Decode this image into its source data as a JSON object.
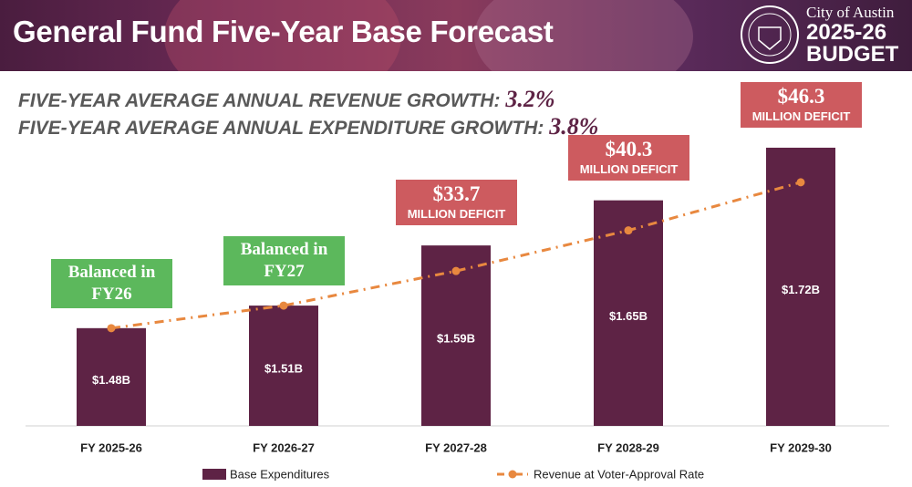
{
  "header": {
    "title": "General Fund Five-Year Base Forecast",
    "city": "City of Austin",
    "year": "2025-26",
    "budget": "BUDGET"
  },
  "headlines": [
    {
      "text": "FIVE-YEAR AVERAGE ANNUAL REVENUE GROWTH:",
      "value": "3.2%"
    },
    {
      "text": "FIVE-YEAR AVERAGE ANNUAL EXPENDITURE GROWTH:",
      "value": "3.8%"
    }
  ],
  "chart_data": {
    "type": "bar",
    "categories": [
      "FY 2025-26",
      "FY 2026-27",
      "FY 2027-28",
      "FY 2028-29",
      "FY 2029-30"
    ],
    "series": [
      {
        "name": "Base Expenditures",
        "color": "#5e2345",
        "type": "bar",
        "values": [
          1.48,
          1.51,
          1.59,
          1.65,
          1.72
        ],
        "value_labels": [
          "$1.48B",
          "$1.51B",
          "$1.59B",
          "$1.65B",
          "$1.72B"
        ]
      },
      {
        "name": "Revenue at Voter-Approval Rate",
        "color": "#e8883f",
        "type": "line",
        "values": [
          1.48,
          1.51,
          1.556,
          1.61,
          1.674
        ]
      }
    ],
    "ylim": [
      1.35,
      1.8
    ],
    "annotations": [
      {
        "text": "Balanced in FY26",
        "color": "#5cb85c"
      },
      {
        "text": "Balanced in FY27",
        "color": "#5cb85c"
      },
      {
        "amount": "$33.7",
        "text": "MILLION DEFICIT",
        "color": "#cd5b5f"
      },
      {
        "amount": "$40.3",
        "text": "MILLION DEFICIT",
        "color": "#cd5b5f"
      },
      {
        "amount": "$46.3",
        "text": "MILLION DEFICIT",
        "color": "#cd5b5f"
      }
    ],
    "legend": "bottom"
  }
}
